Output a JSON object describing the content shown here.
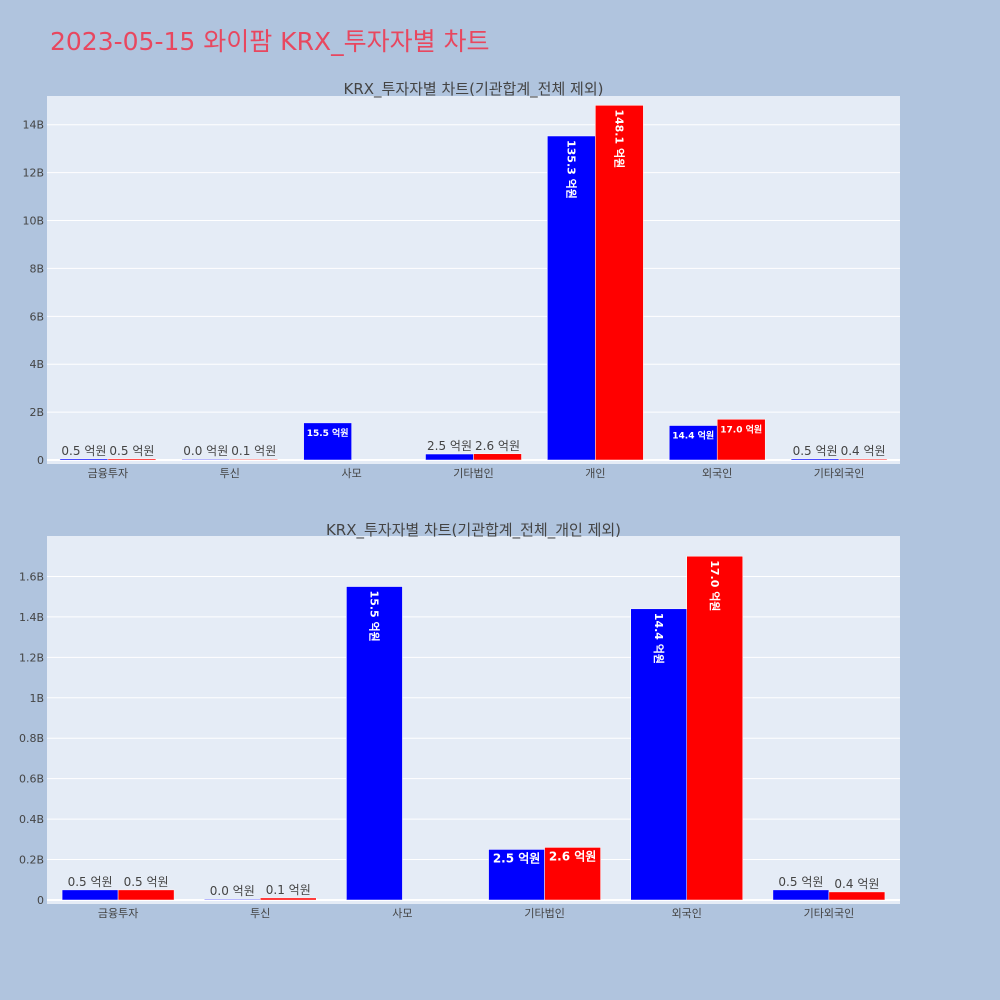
{
  "page_title": "2023-05-15 와이팜 KRX_투자자별 차트",
  "colors": {
    "background": "#b0c4de",
    "plot_bg": "#e5ecf6",
    "grid": "#ffffff",
    "title": "#e8475f",
    "series_1": "#0000ff",
    "series_2": "#ff0000"
  },
  "chart_data": [
    {
      "type": "bar",
      "title": "KRX_투자자별 차트(기관합계_전체 제외)",
      "categories": [
        "금융투자",
        "투신",
        "사모",
        "기타법인",
        "개인",
        "외국인",
        "기타외국인"
      ],
      "series": [
        {
          "values": [
            50000000,
            0,
            1550000000,
            250000000,
            13530000000,
            1440000000,
            50000000
          ],
          "labels": [
            "0.5 억원",
            "0.0 억원",
            "15.5 억원",
            "2.5 억원",
            "135.3 억원",
            "14.4 억원",
            "0.5 억원"
          ]
        },
        {
          "values": [
            50000000,
            10000000,
            null,
            260000000,
            14810000000,
            1700000000,
            40000000
          ],
          "labels": [
            "0.5 억원",
            "0.1 억원",
            "",
            "2.6 억원",
            "148.1 억원",
            "17.0 억원",
            "0.4 억원"
          ]
        }
      ],
      "ylim": [
        0,
        15200000000
      ],
      "yticks": [
        0,
        2000000000,
        4000000000,
        6000000000,
        8000000000,
        10000000000,
        12000000000,
        14000000000
      ],
      "ytick_labels": [
        "0",
        "2B",
        "4B",
        "6B",
        "8B",
        "10B",
        "12B",
        "14B"
      ],
      "grid": true
    },
    {
      "type": "bar",
      "title": "KRX_투자자별 차트(기관합계_전체_개인 제외)",
      "categories": [
        "금융투자",
        "투신",
        "사모",
        "기타법인",
        "외국인",
        "기타외국인"
      ],
      "series": [
        {
          "values": [
            50000000,
            0,
            1550000000,
            250000000,
            1440000000,
            50000000
          ],
          "labels": [
            "0.5 억원",
            "0.0 억원",
            "15.5 억원",
            "2.5 억원",
            "14.4 억원",
            "0.5 억원"
          ]
        },
        {
          "values": [
            50000000,
            10000000,
            null,
            260000000,
            1700000000,
            40000000
          ],
          "labels": [
            "0.5 억원",
            "0.1 억원",
            "",
            "2.6 억원",
            "17.0 억원",
            "0.4 억원"
          ]
        }
      ],
      "ylim": [
        0,
        1800000000
      ],
      "yticks": [
        0,
        200000000,
        400000000,
        600000000,
        800000000,
        1000000000,
        1200000000,
        1400000000,
        1600000000
      ],
      "ytick_labels": [
        "0",
        "0.2B",
        "0.4B",
        "0.6B",
        "0.8B",
        "1B",
        "1.2B",
        "1.4B",
        "1.6B"
      ],
      "grid": true
    }
  ]
}
